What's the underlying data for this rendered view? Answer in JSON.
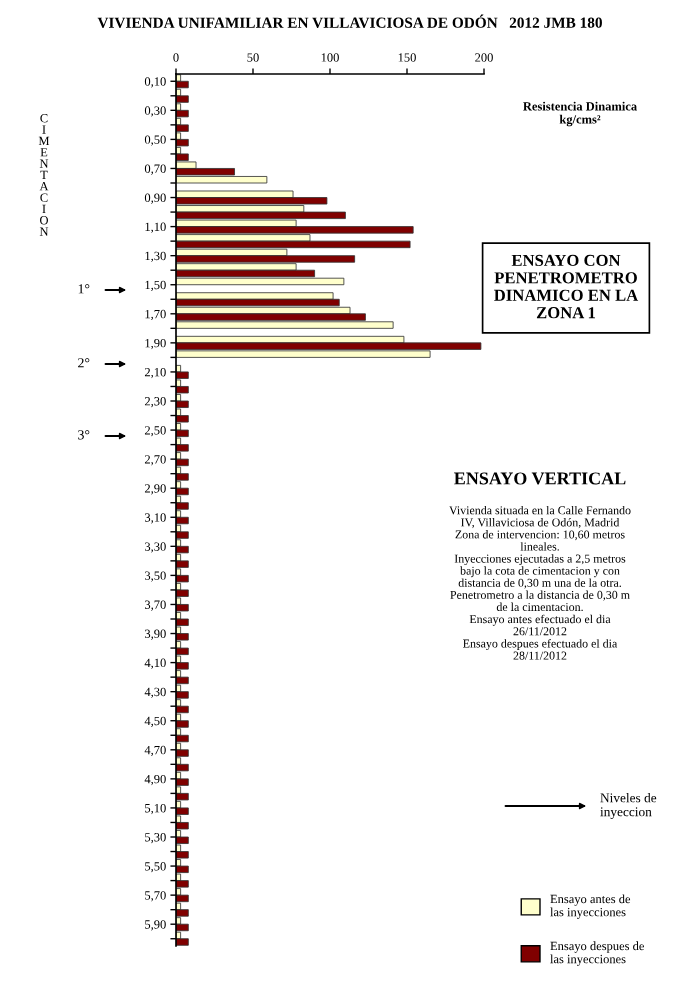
{
  "chart_data": {
    "type": "bar",
    "orientation": "horizontal",
    "title": "VIVIENDA UNIFAMILIAR EN VILLAVICIOSA DE ODÓN   2012 JMB 180",
    "xlabel": "Resistencia Dinamica\nkg/cms²",
    "x": [
      0.1,
      0.2,
      0.3,
      0.4,
      0.5,
      0.6,
      0.7,
      0.8,
      0.9,
      1.0,
      1.1,
      1.2,
      1.3,
      1.4,
      1.5,
      1.6,
      1.7,
      1.8,
      1.9,
      2.0,
      2.1,
      2.2,
      2.3,
      2.4,
      2.5,
      2.6,
      2.7,
      2.8,
      2.9,
      3.0,
      3.1,
      3.2,
      3.3,
      3.4,
      3.5,
      3.6,
      3.7,
      3.8,
      3.9,
      4.0,
      4.1,
      4.2,
      4.3,
      4.4,
      4.5,
      4.6,
      4.7,
      4.8,
      4.9,
      5.0,
      5.1,
      5.2,
      5.3,
      5.4,
      5.5,
      5.6,
      5.7,
      5.8,
      5.9,
      6.0
    ],
    "series": [
      {
        "name": "Ensayo antes de\nlas inyecciones",
        "color": "#ffffcc",
        "values": [
          3,
          3,
          3,
          3,
          3,
          3,
          13,
          59,
          76,
          83,
          78,
          87,
          72,
          78,
          109,
          102,
          113,
          141,
          148,
          165,
          3,
          3,
          3,
          3,
          3,
          3,
          3,
          3,
          3,
          3,
          3,
          3,
          3,
          3,
          3,
          3,
          3,
          3,
          3,
          3,
          3,
          3,
          3,
          3,
          3,
          3,
          3,
          3,
          3,
          3,
          3,
          3,
          3,
          3,
          3,
          3,
          3,
          3,
          3,
          3
        ]
      },
      {
        "name": "Ensayo despues de\nlas inyecciones",
        "color": "#800000",
        "values": [
          8,
          8,
          8,
          8,
          8,
          8,
          38,
          null,
          98,
          110,
          154,
          152,
          116,
          90,
          null,
          106,
          123,
          null,
          198,
          null,
          8,
          8,
          8,
          8,
          8,
          8,
          8,
          8,
          8,
          8,
          8,
          8,
          8,
          8,
          8,
          8,
          8,
          8,
          8,
          8,
          8,
          8,
          8,
          8,
          8,
          8,
          8,
          8,
          8,
          8,
          8,
          8,
          8,
          8,
          8,
          8,
          8,
          8,
          8,
          8
        ]
      }
    ],
    "xlim": [
      0,
      200
    ],
    "xticks": [
      0,
      50,
      100,
      150,
      200
    ],
    "ylim": [
      6.05,
      0.05
    ],
    "yticks": [
      {
        "value": 0.1,
        "label": "0,10"
      },
      {
        "value": 0.2,
        "label": null
      },
      {
        "value": 0.3,
        "label": "0,30"
      },
      {
        "value": 0.4,
        "label": null
      },
      {
        "value": 0.5,
        "label": "0,50"
      },
      {
        "value": 0.6,
        "label": null
      },
      {
        "value": 0.7,
        "label": "0,70"
      },
      {
        "value": 0.8,
        "label": null
      },
      {
        "value": 0.9,
        "label": "0,90"
      },
      {
        "value": 1.0,
        "label": null
      },
      {
        "value": 1.1,
        "label": "1,10"
      },
      {
        "value": 1.2,
        "label": null
      },
      {
        "value": 1.3,
        "label": "1,30"
      },
      {
        "value": 1.4,
        "label": null
      },
      {
        "value": 1.5,
        "label": "1,50"
      },
      {
        "value": 1.6,
        "label": null
      },
      {
        "value": 1.7,
        "label": "1,70"
      },
      {
        "value": 1.8,
        "label": null
      },
      {
        "value": 1.9,
        "label": "1,90"
      },
      {
        "value": 2.0,
        "label": null
      },
      {
        "value": 2.1,
        "label": "2,10"
      },
      {
        "value": 2.2,
        "label": null
      },
      {
        "value": 2.3,
        "label": "2,30"
      },
      {
        "value": 2.4,
        "label": null
      },
      {
        "value": 2.5,
        "label": "2,50"
      },
      {
        "value": 2.6,
        "label": null
      },
      {
        "value": 2.7,
        "label": "2,70"
      },
      {
        "value": 2.8,
        "label": null
      },
      {
        "value": 2.9,
        "label": "2,90"
      },
      {
        "value": 3.0,
        "label": null
      },
      {
        "value": 3.1,
        "label": "3,10"
      },
      {
        "value": 3.2,
        "label": null
      },
      {
        "value": 3.3,
        "label": "3,30"
      },
      {
        "value": 3.4,
        "label": null
      },
      {
        "value": 3.5,
        "label": "3,50"
      },
      {
        "value": 3.6,
        "label": null
      },
      {
        "value": 3.7,
        "label": "3,70"
      },
      {
        "value": 3.8,
        "label": null
      },
      {
        "value": 3.9,
        "label": "3,90"
      },
      {
        "value": 4.0,
        "label": null
      },
      {
        "value": 4.1,
        "label": "4,10"
      },
      {
        "value": 4.2,
        "label": null
      },
      {
        "value": 4.3,
        "label": "4,30"
      },
      {
        "value": 4.4,
        "label": null
      },
      {
        "value": 4.5,
        "label": "4,50"
      },
      {
        "value": 4.6,
        "label": null
      },
      {
        "value": 4.7,
        "label": "4,70"
      },
      {
        "value": 4.8,
        "label": null
      },
      {
        "value": 4.9,
        "label": "4,90"
      },
      {
        "value": 5.0,
        "label": null
      },
      {
        "value": 5.1,
        "label": "5,10"
      },
      {
        "value": 5.2,
        "label": null
      },
      {
        "value": 5.3,
        "label": "5,30"
      },
      {
        "value": 5.4,
        "label": null
      },
      {
        "value": 5.5,
        "label": "5,50"
      },
      {
        "value": 5.6,
        "label": null
      },
      {
        "value": 5.7,
        "label": "5,70"
      },
      {
        "value": 5.8,
        "label": null
      },
      {
        "value": 5.9,
        "label": "5,90"
      },
      {
        "value": 6.0,
        "label": null
      }
    ],
    "legend": "bottom right",
    "annotations": [
      "1°",
      "2°",
      "3°",
      "CIMENTACION",
      "ENSAYO CON\nPENETROMETRO\nDINAMICO EN LA\nZONA 1",
      "ENSAYO VERTICAL",
      "Vivienda situada en la Calle Fernando\nIV, Villaviciosa de Odón, Madrid\nZona de intervencion: 10,60 metros\nlineales.\nInyecciones ejecutadas a 2,5 metros\nbajo la cota de cimentacion y con\ndistancia de 0,30 m una de la otra.\nPenetrometro a la distancia de 0,30 m\nde la cimentacion.\nEnsayo antes efectuado el dia\n26/11/2012\nEnsayo despues efectuado el dia\n28/11/2012",
      "Niveles de\ninyeccion"
    ]
  }
}
